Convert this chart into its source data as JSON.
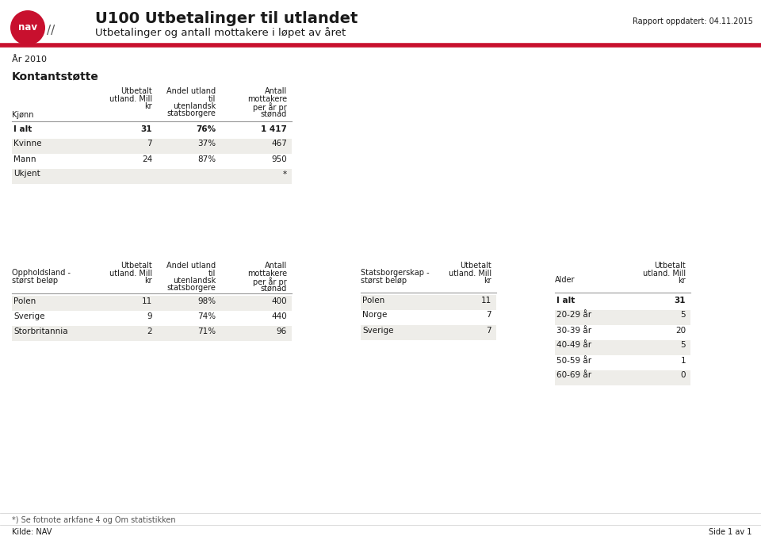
{
  "title": "U100 Utbetalinger til utlandet",
  "subtitle": "Utbetalinger og antall mottakere i løpet av året",
  "report_date": "Rapport oppdatert: 04.11.2015",
  "year_label": "År 2010",
  "section1_title": "Kontantstøtte",
  "section1_rows": [
    [
      "I alt",
      "31",
      "76%",
      "1 417",
      true
    ],
    [
      "Kvinne",
      "7",
      "37%",
      "467",
      false
    ],
    [
      "Mann",
      "24",
      "87%",
      "950",
      false
    ],
    [
      "Ukjent",
      "",
      "",
      "*",
      false
    ]
  ],
  "section1_shaded": [
    1,
    3
  ],
  "section2_rows": [
    [
      "Polen",
      "11",
      "98%",
      "400"
    ],
    [
      "Sverige",
      "9",
      "74%",
      "440"
    ],
    [
      "Storbritannia",
      "2",
      "71%",
      "96"
    ]
  ],
  "section2_shaded": [
    0,
    2
  ],
  "section3_rows": [
    [
      "Polen",
      "11"
    ],
    [
      "Norge",
      "7"
    ],
    [
      "Sverige",
      "7"
    ]
  ],
  "section3_shaded": [
    0,
    2
  ],
  "section4_rows": [
    [
      "I alt",
      "31",
      true
    ],
    [
      "20-29 år",
      "5",
      false
    ],
    [
      "30-39 år",
      "20",
      false
    ],
    [
      "40-49 år",
      "5",
      false
    ],
    [
      "50-59 år",
      "1",
      false
    ],
    [
      "60-69 år",
      "0",
      false
    ]
  ],
  "section4_shaded": [
    1,
    3,
    5
  ],
  "footer_note": "*) Se fotnote arkfane 4 og Om statistikken",
  "footer_source": "Kilde: NAV",
  "footer_page": "Side 1 av 1",
  "bg_color": "#ffffff",
  "shaded_color": "#eeede9",
  "header_line_color": "#c8102e",
  "text_color": "#1a1a1a",
  "logo_red": "#c8102e",
  "sep_line_color": "#999999"
}
